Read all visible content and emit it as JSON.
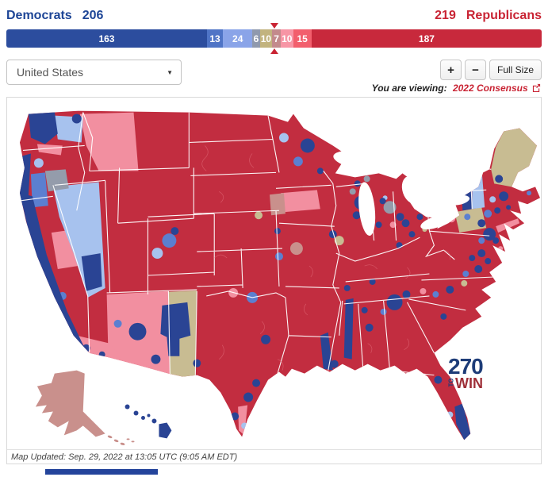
{
  "header": {
    "democrats_label": "Democrats",
    "democrats_seats": "206",
    "republicans_seats": "219",
    "republicans_label": "Republicans",
    "democrat_color": "#1d4596",
    "republican_color": "#c92434"
  },
  "seat_bar": {
    "total_seats": 435,
    "majority_marker_color": "#c92434",
    "segments": [
      {
        "name": "safe-dem",
        "label": "163",
        "value": 163,
        "color": "#2c4d9e"
      },
      {
        "name": "likely-dem",
        "label": "13",
        "value": 13,
        "color": "#4f74c6"
      },
      {
        "name": "lean-dem",
        "label": "24",
        "value": 24,
        "color": "#8aa4e8"
      },
      {
        "name": "tilt-dem",
        "label": "6",
        "value": 6,
        "color": "#8f99ad"
      },
      {
        "name": "toss-up",
        "label": "10",
        "value": 10,
        "color": "#c2b37e"
      },
      {
        "name": "tilt-rep",
        "label": "7",
        "value": 7,
        "color": "#c38a8c"
      },
      {
        "name": "lean-rep",
        "label": "10",
        "value": 10,
        "color": "#f795a5"
      },
      {
        "name": "likely-rep",
        "label": "15",
        "value": 15,
        "color": "#f25f6d"
      },
      {
        "name": "safe-rep",
        "label": "187",
        "value": 187,
        "color": "#c8293c"
      }
    ]
  },
  "toolbar": {
    "region_selector_value": "United States",
    "zoom_in_label": "+",
    "zoom_out_label": "−",
    "full_size_label": "Full Size"
  },
  "viewing": {
    "prefix": "You are viewing:",
    "map_name": "2022 Consensus"
  },
  "map": {
    "updated_text": "Map Updated: Sep. 29, 2022 at 13:05 UTC (9:05 AM EDT)",
    "logo": {
      "number": "270",
      "to": "TO",
      "win": "WIN"
    },
    "colors": {
      "safe_rep": "#c22d40",
      "safe_dem": "#2a4494",
      "lean_dem_med": "#5b7fd0",
      "lean_dem_light": "#a7c2ee",
      "tilt_dem_gray": "#949cab",
      "lean_rep_pink": "#f28fa0",
      "tilt_rep_rose": "#c9908c",
      "tossup_tan": "#c8bc92",
      "water": "#ffffff"
    }
  }
}
